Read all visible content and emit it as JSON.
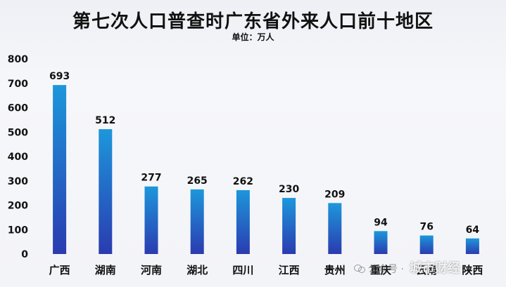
{
  "colors": {
    "bar_top": "#1d97db",
    "bar_bottom": "#2a3bb0",
    "axis_text": "#111111"
  },
  "watermark": {
    "prefix": "公众号 ·",
    "brand": "城市财经"
  },
  "chart_data": {
    "type": "bar",
    "title": "第七次人口普查时广东省外来人口前十地区",
    "subtitle": "单位：万人",
    "xlabel": "",
    "ylabel": "",
    "categories": [
      "广西",
      "湖南",
      "河南",
      "湖北",
      "四川",
      "江西",
      "贵州",
      "重庆",
      "云南",
      "陕西"
    ],
    "values": [
      693,
      512,
      277,
      265,
      262,
      230,
      209,
      94,
      76,
      64
    ],
    "ylim": [
      0,
      800
    ],
    "yticks": [
      0,
      100,
      200,
      300,
      400,
      500,
      600,
      700,
      800
    ],
    "grid": false,
    "legend": "none",
    "data_labels": true
  }
}
